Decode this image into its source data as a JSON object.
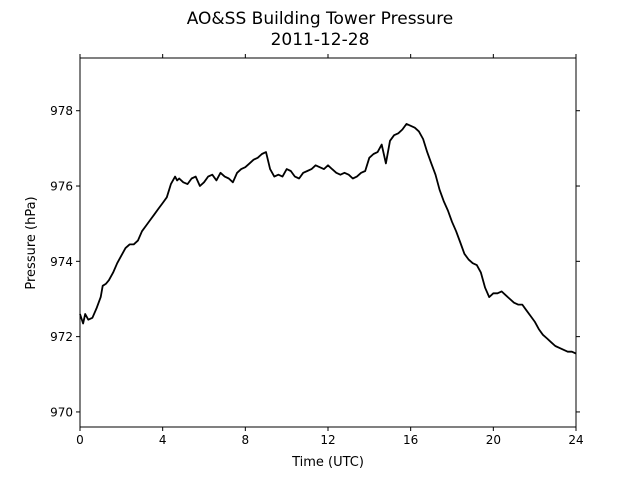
{
  "chart_data": {
    "type": "line",
    "title": "AO&SS Building Tower Pressure",
    "subtitle": "2011-12-28",
    "xlabel": "Time (UTC)",
    "ylabel": "Pressure (hPa)",
    "xlim": [
      0,
      24
    ],
    "ylim": [
      969.6,
      979.4
    ],
    "xticks": [
      0,
      4,
      8,
      12,
      16,
      20,
      24
    ],
    "xtick_labels": [
      "0",
      "4",
      "8",
      "12",
      "16",
      "20",
      "24"
    ],
    "yticks": [
      970,
      972,
      974,
      976,
      978
    ],
    "ytick_labels": [
      "970",
      "972",
      "974",
      "976",
      "978"
    ],
    "grid": false,
    "legend": "none",
    "line_color": "#000000",
    "series": [
      {
        "x": [
          0,
          0.15,
          0.25,
          0.4,
          0.6,
          0.8,
          1.0,
          1.1,
          1.25,
          1.4,
          1.6,
          1.8,
          2.0,
          2.2,
          2.4,
          2.6,
          2.8,
          3.0,
          3.2,
          3.4,
          3.6,
          3.8,
          4.0,
          4.2,
          4.4,
          4.6,
          4.7,
          4.8,
          5.0,
          5.2,
          5.4,
          5.6,
          5.8,
          6.0,
          6.2,
          6.4,
          6.6,
          6.8,
          7.0,
          7.2,
          7.4,
          7.6,
          7.8,
          8.0,
          8.2,
          8.4,
          8.6,
          8.8,
          9.0,
          9.2,
          9.4,
          9.6,
          9.8,
          10.0,
          10.2,
          10.4,
          10.6,
          10.8,
          11.0,
          11.2,
          11.4,
          11.6,
          11.8,
          12.0,
          12.2,
          12.4,
          12.6,
          12.8,
          13.0,
          13.2,
          13.4,
          13.6,
          13.8,
          14.0,
          14.2,
          14.4,
          14.6,
          14.8,
          15.0,
          15.2,
          15.4,
          15.6,
          15.8,
          16.0,
          16.2,
          16.4,
          16.6,
          16.8,
          17.0,
          17.2,
          17.4,
          17.6,
          17.8,
          18.0,
          18.2,
          18.4,
          18.6,
          18.8,
          19.0,
          19.2,
          19.4,
          19.6,
          19.8,
          20.0,
          20.2,
          20.4,
          20.6,
          20.8,
          21.0,
          21.2,
          21.4,
          21.6,
          21.8,
          22.0,
          22.2,
          22.4,
          22.6,
          22.8,
          23.0,
          23.2,
          23.4,
          23.6,
          23.8,
          24.0
        ],
        "values": [
          972.6,
          972.35,
          972.6,
          972.45,
          972.5,
          972.75,
          973.05,
          973.35,
          973.4,
          973.5,
          973.7,
          973.95,
          974.15,
          974.35,
          974.45,
          974.45,
          974.55,
          974.8,
          974.95,
          975.1,
          975.25,
          975.4,
          975.55,
          975.7,
          976.05,
          976.25,
          976.15,
          976.2,
          976.1,
          976.05,
          976.2,
          976.25,
          976.0,
          976.1,
          976.25,
          976.3,
          976.15,
          976.35,
          976.25,
          976.2,
          976.1,
          976.35,
          976.45,
          976.5,
          976.6,
          976.7,
          976.75,
          976.85,
          976.9,
          976.45,
          976.25,
          976.3,
          976.25,
          976.45,
          976.4,
          976.25,
          976.2,
          976.35,
          976.4,
          976.45,
          976.55,
          976.5,
          976.45,
          976.55,
          976.45,
          976.35,
          976.3,
          976.35,
          976.3,
          976.2,
          976.25,
          976.35,
          976.4,
          976.75,
          976.85,
          976.9,
          977.1,
          976.6,
          977.2,
          977.35,
          977.4,
          977.5,
          977.65,
          977.6,
          977.55,
          977.45,
          977.25,
          976.9,
          976.6,
          976.3,
          975.9,
          975.6,
          975.35,
          975.05,
          974.8,
          974.5,
          974.2,
          974.05,
          973.95,
          973.9,
          973.7,
          973.3,
          973.05,
          973.15,
          973.15,
          973.2,
          973.1,
          973.0,
          972.9,
          972.85,
          972.85,
          972.7,
          972.55,
          972.4,
          972.2,
          972.05,
          971.95,
          971.85,
          971.75,
          971.7,
          971.65,
          971.6,
          971.6,
          971.55
        ]
      }
    ]
  }
}
